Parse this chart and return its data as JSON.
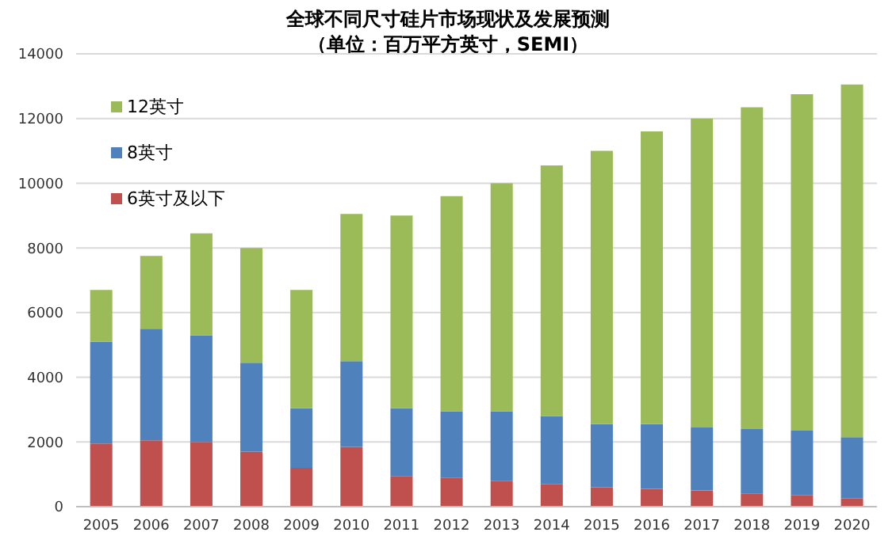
{
  "chart_data": {
    "type": "bar",
    "title": "全球不同尺寸硅片市场现状及发展预测",
    "subtitle": "（单位：百万平方英寸，SEMI）",
    "categories": [
      "2005",
      "2006",
      "2007",
      "2008",
      "2009",
      "2010",
      "2011",
      "2012",
      "2013",
      "2014",
      "2015",
      "2016",
      "2017",
      "2018",
      "2019",
      "2020"
    ],
    "stacked": true,
    "series": [
      {
        "name": "6英寸及以下",
        "color": "#c0504d",
        "values": [
          1950,
          2050,
          2000,
          1700,
          1200,
          1850,
          950,
          900,
          800,
          700,
          600,
          550,
          500,
          400,
          350,
          250
        ]
      },
      {
        "name": "8英寸",
        "color": "#4f81bd",
        "values": [
          3150,
          3450,
          3300,
          2750,
          1850,
          2650,
          2100,
          2050,
          2150,
          2100,
          1950,
          2000,
          1950,
          2000,
          2000,
          1900
        ]
      },
      {
        "name": "12英寸",
        "color": "#9bbb59",
        "values": [
          1600,
          2250,
          3150,
          3550,
          3650,
          4550,
          5950,
          6650,
          7050,
          7750,
          8450,
          9050,
          9550,
          9950,
          10400,
          10900
        ]
      }
    ],
    "ylim": [
      0,
      14000
    ],
    "yticks": [
      0,
      2000,
      4000,
      6000,
      8000,
      10000,
      12000,
      14000
    ],
    "grid": "y",
    "legend": "top left"
  }
}
